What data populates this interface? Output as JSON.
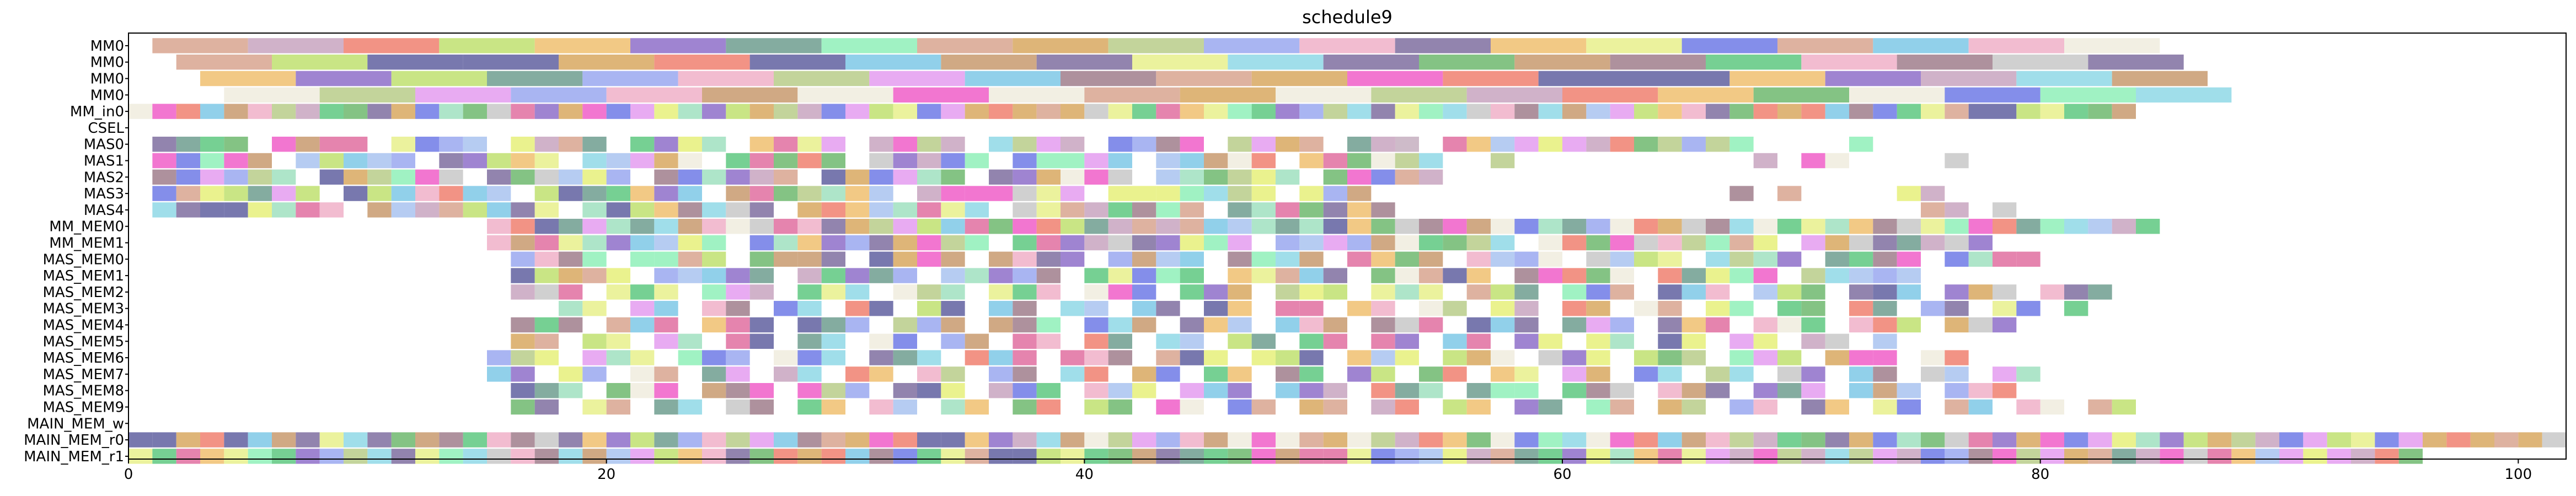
{
  "chart_data": {
    "type": "gantt",
    "title": "schedule9",
    "xlabel": "",
    "ylabel": "",
    "xlim": [
      0,
      102
    ],
    "x_ticks": [
      0,
      20,
      40,
      60,
      80,
      100
    ],
    "grid": false,
    "lanes": [
      "MM0",
      "MM0",
      "MM0",
      "MM0",
      "MM_in0",
      "CSEL",
      "MAS0",
      "MAS1",
      "MAS2",
      "MAS3",
      "MAS4",
      "MM_MEM0",
      "MM_MEM1",
      "MAS_MEM0",
      "MAS_MEM1",
      "MAS_MEM2",
      "MAS_MEM3",
      "MAS_MEM4",
      "MAS_MEM5",
      "MAS_MEM6",
      "MAS_MEM7",
      "MAS_MEM8",
      "MAS_MEM9",
      "MAIN_MEM_w",
      "MAIN_MEM_r0",
      "MAIN_MEM_r1"
    ],
    "palette": [
      "#d8a48f",
      "#8e6fc9",
      "#e49cf0",
      "#a9c3f0",
      "#e6f07a",
      "#b8cc8a",
      "#6f9e8f",
      "#6f7ae6",
      "#e8f08c",
      "#8ff0b8",
      "#a07e8c",
      "#c8a4c0",
      "#f0ecde",
      "#d8a860",
      "#f05ec8",
      "#6fb86f",
      "#8fd8e6",
      "#f0b0c8",
      "#9aa8f0",
      "#c89a6e",
      "#7ec8e6",
      "#c8c8c8",
      "#f0c070",
      "#5ec880",
      "#e06fa0",
      "#a0e0c0",
      "#7f6fa0",
      "#c0e070",
      "#f08070",
      "#6060a0"
    ],
    "tasks": [
      {
        "lane": 0,
        "segments": [
          [
            1,
            5
          ],
          [
            5,
            9
          ],
          [
            9,
            13
          ],
          [
            13,
            17
          ],
          [
            17,
            21
          ],
          [
            21,
            25
          ],
          [
            25,
            29
          ],
          [
            29,
            33
          ],
          [
            33,
            37
          ],
          [
            37,
            41
          ],
          [
            41,
            45
          ],
          [
            45,
            49
          ],
          [
            49,
            53
          ],
          [
            53,
            57
          ],
          [
            57,
            61
          ],
          [
            61,
            65
          ],
          [
            65,
            69
          ],
          [
            69,
            73
          ],
          [
            73,
            77
          ],
          [
            77,
            81
          ],
          [
            81,
            85
          ]
        ]
      },
      {
        "lane": 1,
        "segments": [
          [
            2,
            6
          ],
          [
            6,
            10
          ],
          [
            10,
            14
          ],
          [
            14,
            18
          ],
          [
            18,
            22
          ],
          [
            22,
            26
          ],
          [
            26,
            30
          ],
          [
            30,
            34
          ],
          [
            34,
            38
          ],
          [
            38,
            42
          ],
          [
            42,
            46
          ],
          [
            46,
            50
          ],
          [
            50,
            54
          ],
          [
            54,
            58
          ],
          [
            58,
            62
          ],
          [
            62,
            66
          ],
          [
            66,
            70
          ],
          [
            70,
            74
          ],
          [
            74,
            78
          ],
          [
            78,
            82
          ],
          [
            82,
            86
          ]
        ]
      },
      {
        "lane": 2,
        "segments": [
          [
            3,
            7
          ],
          [
            7,
            11
          ],
          [
            11,
            15
          ],
          [
            15,
            19
          ],
          [
            19,
            23
          ],
          [
            23,
            27
          ],
          [
            27,
            31
          ],
          [
            31,
            35
          ],
          [
            35,
            39
          ],
          [
            39,
            43
          ],
          [
            43,
            47
          ],
          [
            47,
            51
          ],
          [
            51,
            55
          ],
          [
            55,
            59
          ],
          [
            59,
            63
          ],
          [
            63,
            67
          ],
          [
            67,
            71
          ],
          [
            71,
            75
          ],
          [
            75,
            79
          ],
          [
            79,
            83
          ],
          [
            83,
            87
          ]
        ]
      },
      {
        "lane": 3,
        "segments": [
          [
            4,
            8
          ],
          [
            8,
            12
          ],
          [
            12,
            16
          ],
          [
            16,
            20
          ],
          [
            20,
            24
          ],
          [
            24,
            28
          ],
          [
            28,
            32
          ],
          [
            32,
            36
          ],
          [
            36,
            40
          ],
          [
            40,
            44
          ],
          [
            44,
            48
          ],
          [
            48,
            52
          ],
          [
            52,
            56
          ],
          [
            56,
            60
          ],
          [
            60,
            64
          ],
          [
            64,
            68
          ],
          [
            68,
            72
          ],
          [
            72,
            76
          ],
          [
            76,
            80
          ],
          [
            80,
            84
          ],
          [
            84,
            88
          ]
        ]
      },
      {
        "lane": 4,
        "range": [
          0,
          84
        ],
        "step": 1,
        "gap_every": 0
      },
      {
        "lane": 6,
        "range": [
          1,
          54
        ],
        "step": 1,
        "gap_every": 5,
        "extra": [
          [
            53,
            54
          ],
          [
            55,
            56
          ],
          [
            56,
            57
          ],
          [
            57,
            58
          ],
          [
            58,
            59
          ],
          [
            59,
            60
          ],
          [
            60,
            61
          ],
          [
            61,
            62
          ],
          [
            62,
            63
          ],
          [
            63,
            64
          ],
          [
            64,
            65
          ],
          [
            65,
            66
          ],
          [
            66,
            67
          ],
          [
            67,
            68
          ],
          [
            72,
            73
          ]
        ]
      },
      {
        "lane": 7,
        "range": [
          1,
          54
        ],
        "step": 1,
        "gap_every": 6,
        "extra": [
          [
            54,
            55
          ],
          [
            57,
            58
          ],
          [
            68,
            69
          ],
          [
            70,
            71
          ],
          [
            71,
            72
          ],
          [
            76,
            77
          ]
        ]
      },
      {
        "lane": 8,
        "range": [
          1,
          54
        ],
        "step": 1,
        "gap_every": 7,
        "extra": [
          [
            54,
            55
          ]
        ]
      },
      {
        "lane": 9,
        "range": [
          1,
          52
        ],
        "step": 1,
        "gap_every": 8,
        "extra": [
          [
            67,
            68
          ],
          [
            69,
            70
          ],
          [
            74,
            75
          ],
          [
            75,
            76
          ]
        ]
      },
      {
        "lane": 10,
        "range": [
          1,
          53
        ],
        "step": 1,
        "gap_every": 9,
        "extra": [
          [
            75,
            76
          ],
          [
            76,
            77
          ],
          [
            78,
            79
          ]
        ]
      },
      {
        "lane": 11,
        "range": [
          15,
          85
        ],
        "step": 1,
        "gap_every": 0
      },
      {
        "lane": 12,
        "range": [
          15,
          78
        ],
        "step": 1,
        "gap_every": 11
      },
      {
        "lane": 13,
        "range": [
          16,
          81
        ],
        "step": 1,
        "gap_every": 5
      },
      {
        "lane": 14,
        "range": [
          16,
          75
        ],
        "step": 1,
        "gap_every": 6
      },
      {
        "lane": 15,
        "range": [
          16,
          84
        ],
        "step": 1,
        "gap_every": 4
      },
      {
        "lane": 16,
        "range": [
          18,
          82
        ],
        "step": 1,
        "gap_every": 3
      },
      {
        "lane": 17,
        "range": [
          16,
          80
        ],
        "step": 1,
        "gap_every": 4
      },
      {
        "lane": 18,
        "range": [
          16,
          74
        ],
        "step": 1,
        "gap_every": 3
      },
      {
        "lane": 19,
        "range": [
          15,
          77
        ],
        "step": 1,
        "gap_every": 4
      },
      {
        "lane": 20,
        "range": [
          15,
          81
        ],
        "step": 1,
        "gap_every": 3
      },
      {
        "lane": 21,
        "range": [
          16,
          79
        ],
        "step": 1,
        "gap_every": 4
      },
      {
        "lane": 22,
        "range": [
          16,
          84
        ],
        "step": 1,
        "gap_every": 3
      },
      {
        "lane": 24,
        "range": [
          0,
          102
        ],
        "step": 1,
        "gap_every": 0
      },
      {
        "lane": 25,
        "range": [
          0,
          96
        ],
        "step": 1,
        "gap_every": 0
      }
    ]
  }
}
